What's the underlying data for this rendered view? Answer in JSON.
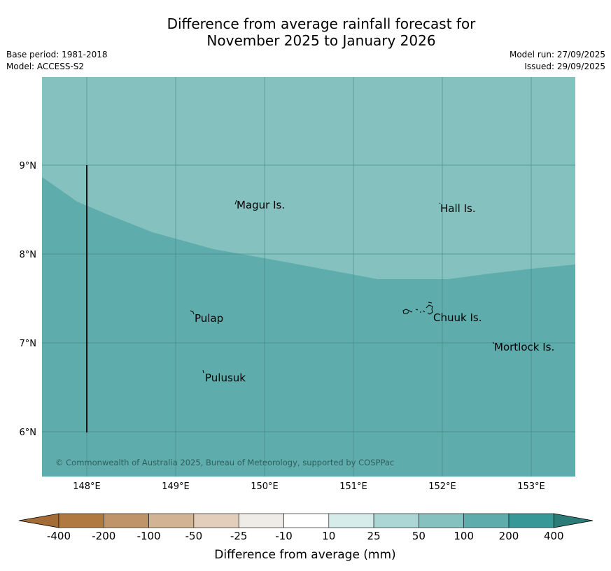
{
  "title": {
    "line1": "Difference from average rainfall forecast for",
    "line2": "November 2025 to January 2026"
  },
  "meta_left": {
    "base_period": "Base period: 1981-2018",
    "model": "Model: ACCESS-S2"
  },
  "meta_right": {
    "model_run": "Model run: 27/09/2025",
    "issued": "Issued: 29/09/2025"
  },
  "map": {
    "lon_ticks": [
      "148°E",
      "149°E",
      "150°E",
      "151°E",
      "152°E",
      "153°E"
    ],
    "lat_ticks": [
      "9°N",
      "8°N",
      "7°N",
      "6°N"
    ],
    "islands": [
      {
        "name": "Magur Is."
      },
      {
        "name": "Hall Is."
      },
      {
        "name": "Pulap"
      },
      {
        "name": "Chuuk Is."
      },
      {
        "name": "Mortlock Is."
      },
      {
        "name": "Pulusuk"
      }
    ],
    "copyright": "© Commonwealth of Australia 2025, Bureau of Meteorology, supported by COSPPac",
    "region_colors": {
      "upper": "#84c1bf",
      "lower": "#5eacac",
      "grid": "#3f7f7e"
    }
  },
  "colorbar": {
    "ticks": [
      "-400",
      "-200",
      "-100",
      "-50",
      "-25",
      "-10",
      "10",
      "25",
      "50",
      "100",
      "200",
      "400"
    ],
    "colors": [
      "#a36b35",
      "#b07940",
      "#c0946a",
      "#d2b494",
      "#e3cdbb",
      "#efebe6",
      "#ffffff",
      "#d5eceb",
      "#acd6d5",
      "#84c1bf",
      "#5eacac",
      "#369997",
      "#2b7b79"
    ],
    "label": "Difference from average (mm)"
  }
}
